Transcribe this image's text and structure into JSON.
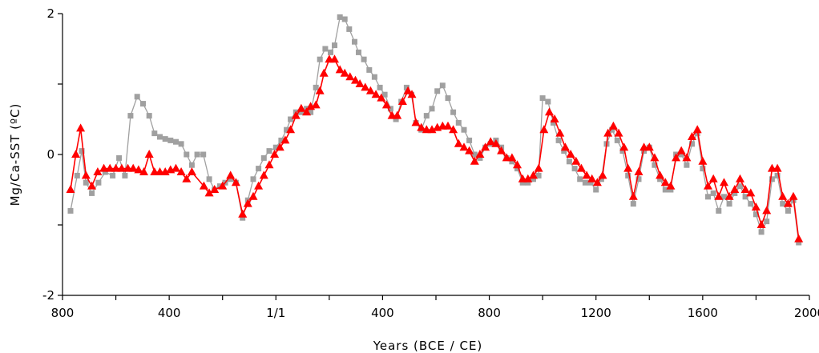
{
  "chart_data": {
    "type": "line",
    "title": "",
    "xlabel": "Years (BCE / CE)",
    "ylabel": "Mg/Ca-SST (ºC)",
    "x_note": "x values are years; negative = BCE, positive = CE",
    "xlim": [
      -800,
      2000
    ],
    "ylim": [
      -2,
      2
    ],
    "x_ticks": [
      {
        "value": -800,
        "label": "800"
      },
      {
        "value": -400,
        "label": "400"
      },
      {
        "value": 0,
        "label": "1/1"
      },
      {
        "value": 400,
        "label": "400"
      },
      {
        "value": 800,
        "label": "800"
      },
      {
        "value": 1200,
        "label": "1200"
      },
      {
        "value": 1600,
        "label": "1600"
      },
      {
        "value": 2000,
        "label": "2000"
      }
    ],
    "y_ticks": [
      {
        "value": -2,
        "label": "-2"
      },
      {
        "value": 0,
        "label": "0"
      },
      {
        "value": 2,
        "label": "2"
      }
    ],
    "grid": false,
    "legend": "none",
    "series": [
      {
        "marker": "square",
        "color": "#a0a0a0",
        "points": [
          [
            -770,
            -0.8
          ],
          [
            -745,
            -0.3
          ],
          [
            -728,
            0.05
          ],
          [
            -712,
            -0.4
          ],
          [
            -690,
            -0.55
          ],
          [
            -665,
            -0.4
          ],
          [
            -640,
            -0.25
          ],
          [
            -612,
            -0.3
          ],
          [
            -588,
            -0.05
          ],
          [
            -566,
            -0.3
          ],
          [
            -545,
            0.55
          ],
          [
            -520,
            0.82
          ],
          [
            -498,
            0.72
          ],
          [
            -475,
            0.55
          ],
          [
            -455,
            0.3
          ],
          [
            -435,
            0.25
          ],
          [
            -415,
            0.22
          ],
          [
            -395,
            0.2
          ],
          [
            -375,
            0.18
          ],
          [
            -355,
            0.15
          ],
          [
            -335,
            0.0
          ],
          [
            -315,
            -0.15
          ],
          [
            -295,
            0.0
          ],
          [
            -272,
            0.0
          ],
          [
            -250,
            -0.35
          ],
          [
            -230,
            -0.5
          ],
          [
            -210,
            -0.45
          ],
          [
            -190,
            -0.4
          ],
          [
            -170,
            -0.35
          ],
          [
            -150,
            -0.4
          ],
          [
            -125,
            -0.9
          ],
          [
            -105,
            -0.65
          ],
          [
            -85,
            -0.35
          ],
          [
            -65,
            -0.2
          ],
          [
            -45,
            -0.05
          ],
          [
            -25,
            0.05
          ],
          [
            0,
            0.1
          ],
          [
            20,
            0.2
          ],
          [
            40,
            0.35
          ],
          [
            55,
            0.5
          ],
          [
            75,
            0.6
          ],
          [
            95,
            0.6
          ],
          [
            115,
            0.65
          ],
          [
            130,
            0.6
          ],
          [
            150,
            0.95
          ],
          [
            165,
            1.35
          ],
          [
            185,
            1.5
          ],
          [
            205,
            1.45
          ],
          [
            220,
            1.55
          ],
          [
            240,
            1.95
          ],
          [
            258,
            1.92
          ],
          [
            275,
            1.78
          ],
          [
            295,
            1.6
          ],
          [
            310,
            1.45
          ],
          [
            330,
            1.35
          ],
          [
            350,
            1.2
          ],
          [
            370,
            1.1
          ],
          [
            390,
            0.95
          ],
          [
            408,
            0.85
          ],
          [
            430,
            0.65
          ],
          [
            450,
            0.5
          ],
          [
            470,
            0.75
          ],
          [
            490,
            0.95
          ],
          [
            508,
            0.85
          ],
          [
            525,
            0.45
          ],
          [
            545,
            0.35
          ],
          [
            565,
            0.55
          ],
          [
            585,
            0.65
          ],
          [
            605,
            0.9
          ],
          [
            625,
            0.98
          ],
          [
            645,
            0.8
          ],
          [
            665,
            0.6
          ],
          [
            685,
            0.45
          ],
          [
            705,
            0.35
          ],
          [
            725,
            0.2
          ],
          [
            745,
            0.0
          ],
          [
            765,
            -0.05
          ],
          [
            785,
            0.1
          ],
          [
            805,
            0.15
          ],
          [
            825,
            0.2
          ],
          [
            845,
            0.1
          ],
          [
            865,
            -0.05
          ],
          [
            885,
            -0.1
          ],
          [
            905,
            -0.2
          ],
          [
            925,
            -0.4
          ],
          [
            945,
            -0.4
          ],
          [
            965,
            -0.35
          ],
          [
            985,
            -0.3
          ],
          [
            1000,
            0.8
          ],
          [
            1020,
            0.75
          ],
          [
            1040,
            0.45
          ],
          [
            1060,
            0.2
          ],
          [
            1080,
            0.05
          ],
          [
            1100,
            -0.1
          ],
          [
            1120,
            -0.2
          ],
          [
            1140,
            -0.35
          ],
          [
            1160,
            -0.4
          ],
          [
            1180,
            -0.4
          ],
          [
            1200,
            -0.5
          ],
          [
            1220,
            -0.35
          ],
          [
            1240,
            0.15
          ],
          [
            1260,
            0.35
          ],
          [
            1280,
            0.2
          ],
          [
            1300,
            0.05
          ],
          [
            1320,
            -0.3
          ],
          [
            1340,
            -0.7
          ],
          [
            1360,
            -0.35
          ],
          [
            1380,
            0.05
          ],
          [
            1400,
            0.1
          ],
          [
            1420,
            -0.15
          ],
          [
            1440,
            -0.35
          ],
          [
            1460,
            -0.5
          ],
          [
            1480,
            -0.5
          ],
          [
            1500,
            0.0
          ],
          [
            1520,
            0.0
          ],
          [
            1540,
            -0.15
          ],
          [
            1560,
            0.15
          ],
          [
            1580,
            0.3
          ],
          [
            1600,
            -0.2
          ],
          [
            1620,
            -0.6
          ],
          [
            1640,
            -0.55
          ],
          [
            1660,
            -0.8
          ],
          [
            1680,
            -0.6
          ],
          [
            1700,
            -0.7
          ],
          [
            1720,
            -0.55
          ],
          [
            1740,
            -0.45
          ],
          [
            1760,
            -0.6
          ],
          [
            1780,
            -0.7
          ],
          [
            1800,
            -0.85
          ],
          [
            1820,
            -1.1
          ],
          [
            1840,
            -0.95
          ],
          [
            1860,
            -0.35
          ],
          [
            1880,
            -0.3
          ],
          [
            1900,
            -0.7
          ],
          [
            1920,
            -0.8
          ],
          [
            1940,
            -0.65
          ],
          [
            1960,
            -1.25
          ]
        ]
      },
      {
        "marker": "triangle",
        "color": "#ff0000",
        "points": [
          [
            -770,
            -0.5
          ],
          [
            -750,
            0.0
          ],
          [
            -732,
            0.37
          ],
          [
            -712,
            -0.3
          ],
          [
            -690,
            -0.45
          ],
          [
            -668,
            -0.25
          ],
          [
            -645,
            -0.2
          ],
          [
            -622,
            -0.2
          ],
          [
            -600,
            -0.2
          ],
          [
            -578,
            -0.2
          ],
          [
            -555,
            -0.2
          ],
          [
            -535,
            -0.2
          ],
          [
            -515,
            -0.22
          ],
          [
            -495,
            -0.25
          ],
          [
            -475,
            0.0
          ],
          [
            -455,
            -0.25
          ],
          [
            -435,
            -0.25
          ],
          [
            -415,
            -0.25
          ],
          [
            -395,
            -0.22
          ],
          [
            -375,
            -0.2
          ],
          [
            -355,
            -0.25
          ],
          [
            -335,
            -0.35
          ],
          [
            -315,
            -0.25
          ],
          [
            -270,
            -0.45
          ],
          [
            -250,
            -0.55
          ],
          [
            -230,
            -0.5
          ],
          [
            -200,
            -0.45
          ],
          [
            -170,
            -0.3
          ],
          [
            -150,
            -0.4
          ],
          [
            -125,
            -0.85
          ],
          [
            -105,
            -0.7
          ],
          [
            -85,
            -0.6
          ],
          [
            -65,
            -0.45
          ],
          [
            -45,
            -0.3
          ],
          [
            -25,
            -0.15
          ],
          [
            -5,
            0.0
          ],
          [
            15,
            0.1
          ],
          [
            35,
            0.2
          ],
          [
            55,
            0.35
          ],
          [
            75,
            0.55
          ],
          [
            95,
            0.65
          ],
          [
            115,
            0.6
          ],
          [
            130,
            0.68
          ],
          [
            150,
            0.7
          ],
          [
            165,
            0.9
          ],
          [
            180,
            1.15
          ],
          [
            200,
            1.35
          ],
          [
            220,
            1.35
          ],
          [
            240,
            1.2
          ],
          [
            258,
            1.15
          ],
          [
            278,
            1.1
          ],
          [
            298,
            1.05
          ],
          [
            315,
            1.0
          ],
          [
            335,
            0.95
          ],
          [
            355,
            0.9
          ],
          [
            375,
            0.85
          ],
          [
            395,
            0.8
          ],
          [
            415,
            0.7
          ],
          [
            435,
            0.55
          ],
          [
            455,
            0.55
          ],
          [
            475,
            0.75
          ],
          [
            495,
            0.9
          ],
          [
            510,
            0.85
          ],
          [
            525,
            0.45
          ],
          [
            545,
            0.38
          ],
          [
            565,
            0.35
          ],
          [
            585,
            0.35
          ],
          [
            605,
            0.38
          ],
          [
            625,
            0.4
          ],
          [
            645,
            0.4
          ],
          [
            665,
            0.35
          ],
          [
            685,
            0.15
          ],
          [
            705,
            0.1
          ],
          [
            725,
            0.05
          ],
          [
            745,
            -0.1
          ],
          [
            765,
            0.0
          ],
          [
            785,
            0.1
          ],
          [
            805,
            0.18
          ],
          [
            825,
            0.15
          ],
          [
            845,
            0.05
          ],
          [
            865,
            -0.05
          ],
          [
            885,
            -0.05
          ],
          [
            905,
            -0.15
          ],
          [
            925,
            -0.35
          ],
          [
            945,
            -0.35
          ],
          [
            965,
            -0.3
          ],
          [
            985,
            -0.2
          ],
          [
            1005,
            0.35
          ],
          [
            1025,
            0.6
          ],
          [
            1045,
            0.5
          ],
          [
            1065,
            0.3
          ],
          [
            1085,
            0.1
          ],
          [
            1105,
            0.0
          ],
          [
            1125,
            -0.1
          ],
          [
            1145,
            -0.2
          ],
          [
            1165,
            -0.3
          ],
          [
            1185,
            -0.35
          ],
          [
            1205,
            -0.4
          ],
          [
            1225,
            -0.3
          ],
          [
            1245,
            0.3
          ],
          [
            1265,
            0.4
          ],
          [
            1285,
            0.3
          ],
          [
            1305,
            0.1
          ],
          [
            1320,
            -0.2
          ],
          [
            1340,
            -0.6
          ],
          [
            1360,
            -0.25
          ],
          [
            1380,
            0.1
          ],
          [
            1400,
            0.1
          ],
          [
            1420,
            -0.05
          ],
          [
            1440,
            -0.3
          ],
          [
            1460,
            -0.4
          ],
          [
            1480,
            -0.45
          ],
          [
            1500,
            -0.05
          ],
          [
            1520,
            0.05
          ],
          [
            1540,
            -0.05
          ],
          [
            1560,
            0.25
          ],
          [
            1580,
            0.35
          ],
          [
            1600,
            -0.1
          ],
          [
            1620,
            -0.45
          ],
          [
            1640,
            -0.35
          ],
          [
            1660,
            -0.6
          ],
          [
            1680,
            -0.4
          ],
          [
            1700,
            -0.6
          ],
          [
            1720,
            -0.5
          ],
          [
            1740,
            -0.35
          ],
          [
            1760,
            -0.5
          ],
          [
            1780,
            -0.55
          ],
          [
            1800,
            -0.75
          ],
          [
            1820,
            -1.0
          ],
          [
            1840,
            -0.8
          ],
          [
            1860,
            -0.2
          ],
          [
            1880,
            -0.2
          ],
          [
            1900,
            -0.6
          ],
          [
            1920,
            -0.7
          ],
          [
            1940,
            -0.6
          ],
          [
            1960,
            -1.2
          ]
        ]
      }
    ]
  }
}
